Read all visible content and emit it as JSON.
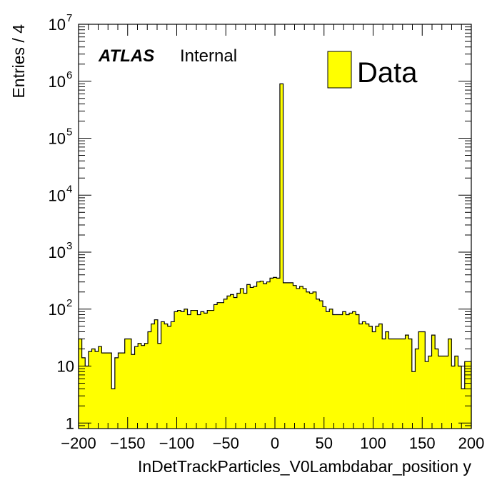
{
  "chart_data": {
    "type": "bar",
    "title": "",
    "xlabel": "InDetTrackParticles_V0Lambdabar_position y",
    "ylabel": "Entries / 4",
    "xlim": [
      -200,
      200
    ],
    "ylim": [
      0.8,
      10000000
    ],
    "log_y": true,
    "bin_width": 4,
    "x_ticks": [
      "−200",
      "−150",
      "−100",
      "−50",
      "0",
      "50",
      "100",
      "150",
      "200"
    ],
    "x_tick_values": [
      -200,
      -150,
      -100,
      -50,
      0,
      50,
      100,
      150,
      200
    ],
    "y_ticks": [
      {
        "base": "1",
        "exp": ""
      },
      {
        "base": "10",
        "exp": ""
      },
      {
        "base": "10",
        "exp": "2"
      },
      {
        "base": "10",
        "exp": "3"
      },
      {
        "base": "10",
        "exp": "4"
      },
      {
        "base": "10",
        "exp": "5"
      },
      {
        "base": "10",
        "exp": "6"
      },
      {
        "base": "10",
        "exp": "7"
      }
    ],
    "y_tick_values": [
      1,
      10,
      100,
      1000,
      10000,
      100000,
      1000000,
      10000000
    ],
    "atlas_label": "ATLAS",
    "atlas_sublabel": "Internal",
    "series": [
      {
        "name": "Data",
        "fill": "#ffff00",
        "line": "#000000",
        "values": [
          30,
          14,
          10,
          18,
          20,
          18,
          22,
          17,
          17,
          17,
          4,
          14,
          17,
          17,
          30,
          30,
          16,
          22,
          25,
          23,
          25,
          40,
          55,
          65,
          25,
          60,
          55,
          50,
          60,
          90,
          95,
          90,
          100,
          80,
          95,
          95,
          80,
          90,
          85,
          95,
          95,
          120,
          130,
          130,
          150,
          170,
          180,
          160,
          190,
          230,
          190,
          270,
          240,
          250,
          300,
          310,
          280,
          300,
          350,
          360,
          350,
          900000,
          290,
          290,
          290,
          260,
          230,
          250,
          230,
          200,
          190,
          200,
          150,
          140,
          110,
          90,
          100,
          80,
          80,
          80,
          90,
          80,
          85,
          90,
          80,
          55,
          60,
          55,
          50,
          40,
          50,
          55,
          30,
          40,
          30,
          30,
          30,
          30,
          30,
          35,
          30,
          8,
          20,
          40,
          40,
          12,
          15,
          35,
          20,
          15,
          15,
          15,
          30,
          10,
          15,
          10,
          4,
          12,
          12
        ]
      }
    ],
    "legend": {
      "position": "top-right",
      "entries": [
        "Data"
      ]
    }
  }
}
